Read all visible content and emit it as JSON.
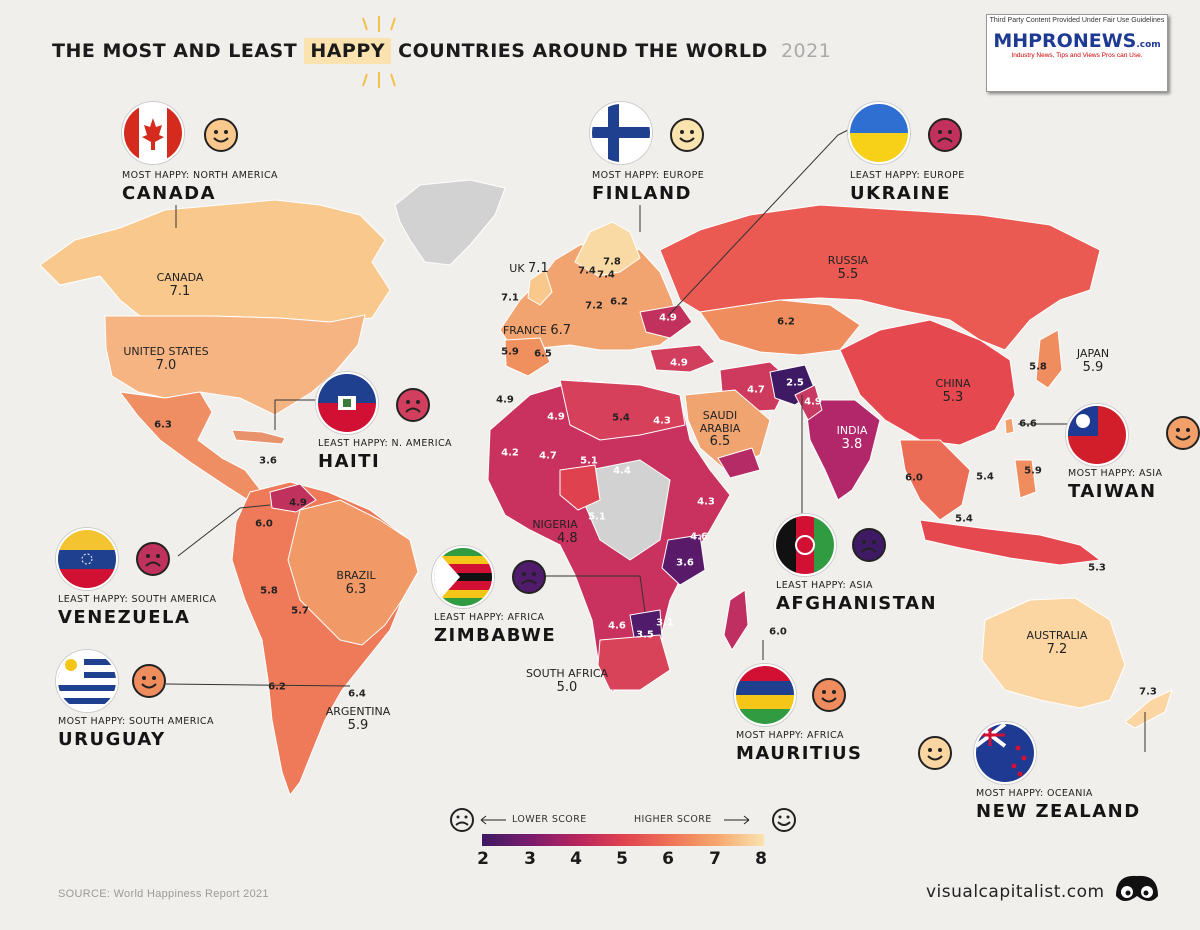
{
  "title": {
    "pre": "THE MOST AND LEAST",
    "highlight": "HAPPY",
    "post": "COUNTRIES AROUND THE WORLD",
    "year": "2021"
  },
  "logo": {
    "top": "Third Party Content Provided Under Fair Use Guidelines",
    "brand": "MHPRONEWS",
    "domain": ".com",
    "tagline": "Industry News, Tips and Views Pros can Use."
  },
  "map_labels": [
    {
      "name": "CANADA",
      "value": "7.1"
    },
    {
      "name": "UNITED STATES",
      "value": "7.0"
    },
    {
      "name": "RUSSIA",
      "value": "5.5"
    },
    {
      "name": "CHINA",
      "value": "5.3"
    },
    {
      "name": "INDIA",
      "value": "3.8"
    },
    {
      "name": "JAPAN",
      "value": "5.9"
    },
    {
      "name": "BRAZIL",
      "value": "6.3"
    },
    {
      "name": "ARGENTINA",
      "value": "5.9"
    },
    {
      "name": "AUSTRALIA",
      "value": "7.2"
    },
    {
      "name": "SAUDI ARABIA",
      "value": "6.5"
    },
    {
      "name": "NIGERIA",
      "value": "4.8"
    },
    {
      "name": "SOUTH AFRICA",
      "value": "5.0"
    },
    {
      "name": "UK",
      "value": "7.1"
    },
    {
      "name": "FRANCE",
      "value": "6.7"
    }
  ],
  "small_values": [
    "7.4",
    "7.4",
    "7.8",
    "7.1",
    "7.2",
    "6.2",
    "4.9",
    "5.9",
    "6.5",
    "4.9",
    "6.2",
    "4.9",
    "4.9",
    "5.4",
    "4.3",
    "4.7",
    "2.5",
    "4.9",
    "6.3",
    "3.6",
    "4.2",
    "4.7",
    "5.1",
    "4.4",
    "4.3",
    "5.1",
    "4.6",
    "3.6",
    "4.6",
    "3.5",
    "3.1",
    "6.0",
    "5.8",
    "5.7",
    "4.9",
    "6.2",
    "6.4",
    "5.8",
    "6.6",
    "6.0",
    "5.4",
    "5.9",
    "5.4",
    "5.3",
    "6.0",
    "7.3"
  ],
  "cards": [
    {
      "sub": "MOST HAPPY: NORTH AMERICA",
      "name": "CANADA",
      "mood": "happy"
    },
    {
      "sub": "MOST HAPPY: EUROPE",
      "name": "FINLAND",
      "mood": "happy"
    },
    {
      "sub": "LEAST HAPPY: EUROPE",
      "name": "UKRAINE",
      "mood": "sad"
    },
    {
      "sub": "LEAST HAPPY: N. AMERICA",
      "name": "HAITI",
      "mood": "sad"
    },
    {
      "sub": "MOST HAPPY: ASIA",
      "name": "TAIWAN",
      "mood": "happy"
    },
    {
      "sub": "LEAST HAPPY: SOUTH AMERICA",
      "name": "VENEZUELA",
      "mood": "sad"
    },
    {
      "sub": "LEAST HAPPY: AFRICA",
      "name": "ZIMBABWE",
      "mood": "sad"
    },
    {
      "sub": "LEAST HAPPY: ASIA",
      "name": "AFGHANISTAN",
      "mood": "sad"
    },
    {
      "sub": "MOST HAPPY: SOUTH AMERICA",
      "name": "URUGUAY",
      "mood": "happy"
    },
    {
      "sub": "MOST HAPPY: AFRICA",
      "name": "MAURITIUS",
      "mood": "happy"
    },
    {
      "sub": "MOST HAPPY: OCEANIA",
      "name": "NEW ZEALAND",
      "mood": "happy"
    }
  ],
  "legend": {
    "lower": "LOWER SCORE",
    "higher": "HIGHER SCORE",
    "ticks": [
      "2",
      "3",
      "4",
      "5",
      "6",
      "7",
      "8"
    ],
    "colors": [
      "#3d1a63",
      "#7a1c6e",
      "#b3245f",
      "#e0414f",
      "#ef7356",
      "#f6a66c",
      "#fbe3b0"
    ]
  },
  "source": "SOURCE: World Happiness Report 2021",
  "brand": "visualcapitalist.com",
  "colors": {
    "background": "#f1efec",
    "no_data": "#d2d2d2"
  }
}
